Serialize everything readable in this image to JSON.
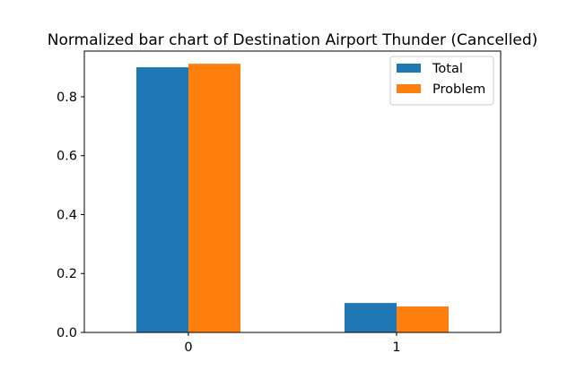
{
  "chart_data": {
    "type": "bar",
    "title": "Normalized bar chart of Destination Airport Thunder (Cancelled)",
    "xlabel": "",
    "ylabel": "",
    "categories": [
      "0",
      "1"
    ],
    "series": [
      {
        "name": "Total",
        "values": [
          0.9,
          0.1
        ],
        "color": "#1f77b4"
      },
      {
        "name": "Problem",
        "values": [
          0.912,
          0.088
        ],
        "color": "#ff7f0e"
      }
    ],
    "ylim": [
      0,
      0.955
    ],
    "yticks": [
      "0.0",
      "0.2",
      "0.4",
      "0.6",
      "0.8"
    ],
    "grid": false,
    "legend_position": "top-right"
  }
}
